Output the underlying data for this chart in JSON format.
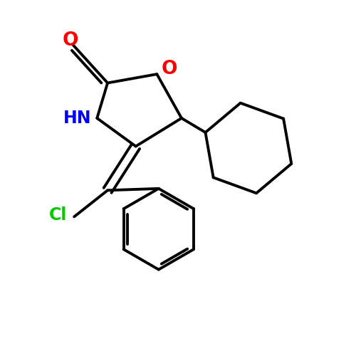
{
  "background_color": "#ffffff",
  "line_color": "#000000",
  "line_width": 2.8,
  "atom_colors": {
    "O": "#ff0000",
    "N": "#0000ff",
    "Cl": "#00cc00"
  },
  "font_size": 17,
  "figsize": [
    5.0,
    5.0
  ],
  "dpi": 100
}
